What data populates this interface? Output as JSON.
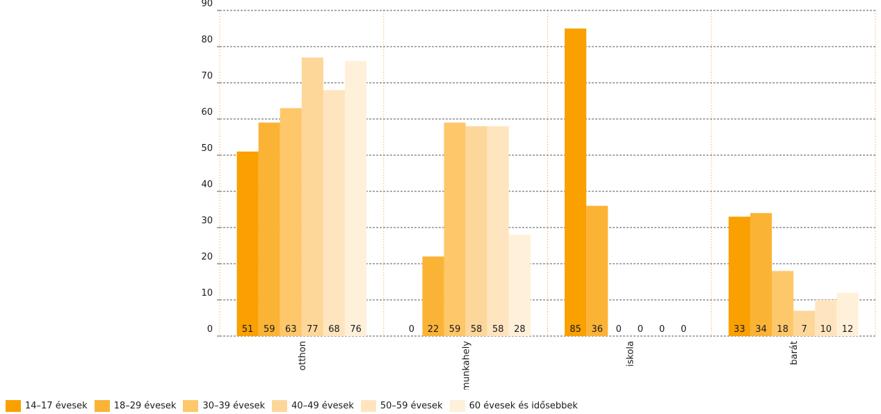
{
  "chart_data": {
    "type": "bar",
    "title": "",
    "xlabel": "",
    "ylabel": "",
    "ylim": [
      0,
      90
    ],
    "yticks": [
      "0",
      "10",
      "20",
      "30",
      "40",
      "50",
      "60",
      "70",
      "80",
      "90"
    ],
    "categories": [
      "otthon",
      "munkahely",
      "iskola",
      "barát"
    ],
    "grid": true,
    "legend_position": "bottom",
    "series": [
      {
        "name": "14–17 évesek",
        "color": "#FAA000",
        "values": [
          51,
          0,
          85,
          33
        ],
        "labels": [
          "51",
          "0",
          "85",
          "33"
        ]
      },
      {
        "name": "18–29 évesek",
        "color": "#FBB336",
        "values": [
          59,
          22,
          36,
          34
        ],
        "labels": [
          "59",
          "22",
          "36",
          "34"
        ]
      },
      {
        "name": "30–39 évesek",
        "color": "#FDC76A",
        "values": [
          63,
          59,
          0,
          18
        ],
        "labels": [
          "63",
          "59",
          "0",
          "18"
        ]
      },
      {
        "name": "40–49 évesek",
        "color": "#FDD79A",
        "values": [
          77,
          58,
          0,
          7
        ],
        "labels": [
          "77",
          "58",
          "0",
          "7"
        ]
      },
      {
        "name": "50–59 évesek",
        "color": "#FEE5BF",
        "values": [
          68,
          58,
          0,
          10
        ],
        "labels": [
          "68",
          "58",
          "0",
          "10"
        ]
      },
      {
        "name": "60 évesek és idősebbek",
        "color": "#FFF0DA",
        "values": [
          76,
          28,
          0,
          12
        ],
        "labels": [
          "76",
          "28",
          "0",
          "12"
        ]
      }
    ]
  }
}
